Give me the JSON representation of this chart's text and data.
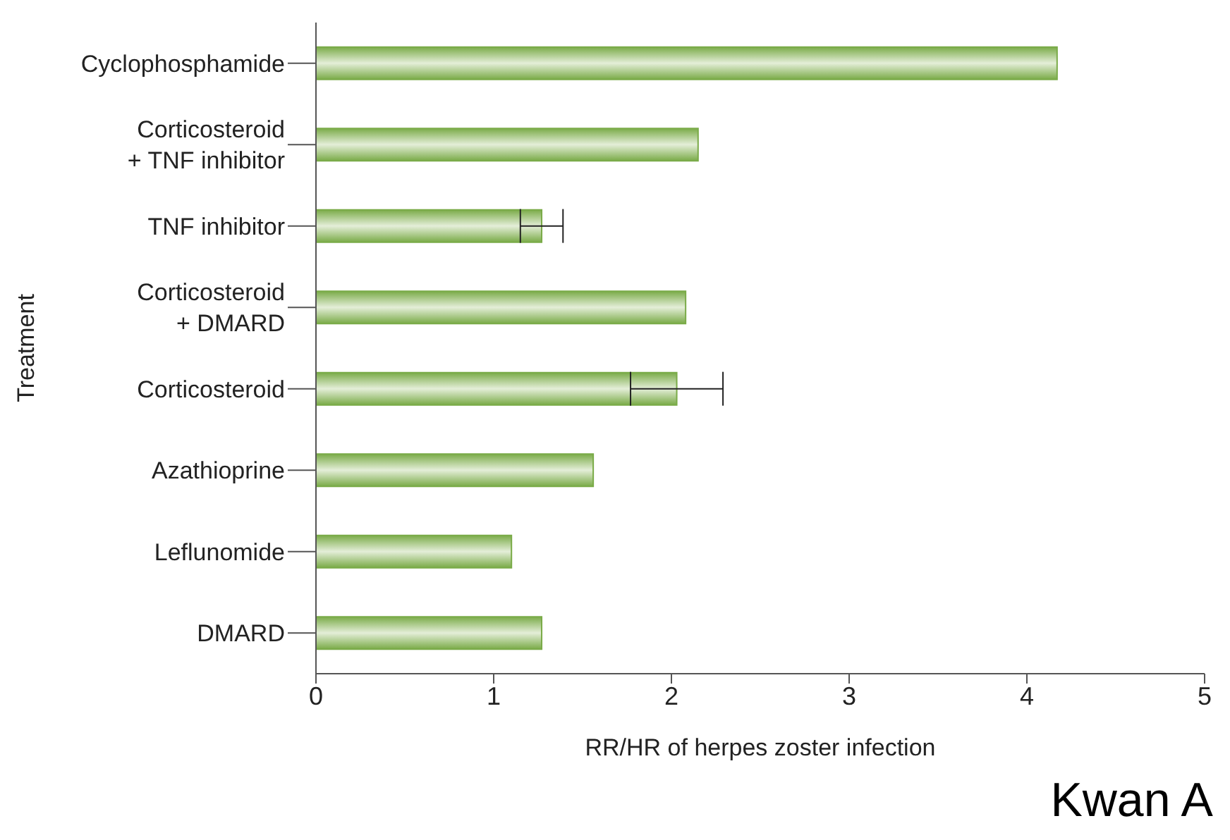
{
  "chart_data": {
    "type": "bar",
    "orientation": "horizontal",
    "ylabel": "Treatment",
    "xlabel": "RR/HR of herpes zoster infection",
    "categories": [
      "Cyclophosphamide",
      "Corticosteroid\n+ TNF inhibitor",
      "TNF inhibitor",
      "Corticosteroid\n+ DMARD",
      "Corticosteroid",
      "Azathioprine",
      "Leflunomide",
      "DMARD"
    ],
    "values": [
      4.17,
      2.15,
      1.27,
      2.08,
      2.03,
      1.56,
      1.1,
      1.27
    ],
    "errors": [
      null,
      null,
      0.12,
      null,
      0.26,
      null,
      null,
      null
    ],
    "color": "#7aab48",
    "xlim": [
      0,
      5
    ],
    "xticks": [
      0,
      1,
      2,
      3,
      4,
      5
    ],
    "annotations": [
      "Kwan A"
    ]
  }
}
